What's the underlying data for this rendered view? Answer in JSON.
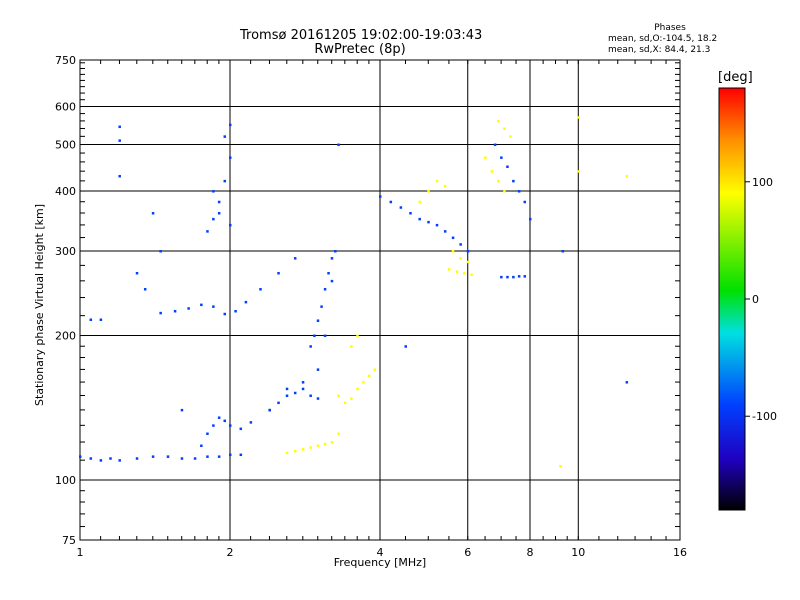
{
  "chart_data": {
    "type": "scatter",
    "title": "Tromsø 20161205 19:02:00-19:03:43",
    "subtitle": "RwPretec (8p)",
    "xlabel": "Frequency [MHz]",
    "ylabel": "Stationary phase Virtual Height [km]",
    "x_scale": "log",
    "y_scale": "log",
    "xlim": [
      1,
      16
    ],
    "ylim": [
      75,
      750
    ],
    "x_ticks": [
      1,
      2,
      4,
      6,
      8,
      10,
      16
    ],
    "y_ticks": [
      75,
      100,
      200,
      300,
      400,
      500,
      600,
      750
    ],
    "grid": true,
    "phases_box": {
      "title": "Phases",
      "line1": "mean, sd,O:-104.5, 18.2",
      "line2": "mean, sd,X:  84.4, 21.3"
    },
    "colorbar": {
      "label": "[deg]",
      "range": [
        -180,
        180
      ],
      "ticks": [
        100,
        0,
        -100
      ],
      "colors": [
        "#ff0000",
        "#ff8c00",
        "#ffff00",
        "#00e000",
        "#00e0e0",
        "#0040ff",
        "#2000c0",
        "#000000"
      ]
    },
    "series": [
      {
        "phase": -110,
        "x": [
          1.0,
          1.05,
          1.1,
          1.15,
          1.2,
          1.3,
          1.4,
          1.5,
          1.6,
          1.7,
          1.8,
          1.9,
          2.0,
          2.1
        ],
        "y": [
          112,
          111,
          110,
          111,
          110,
          111,
          112,
          112,
          111,
          111,
          112,
          112,
          113,
          113
        ]
      },
      {
        "phase": -110,
        "x": [
          1.45,
          1.55,
          1.65,
          1.75,
          1.85,
          1.95,
          2.05,
          2.15,
          2.3,
          2.5,
          2.7
        ],
        "y": [
          223,
          225,
          228,
          232,
          230,
          222,
          225,
          235,
          250,
          270,
          290
        ]
      },
      {
        "phase": -100,
        "x": [
          1.05,
          1.1
        ],
        "y": [
          216,
          216
        ]
      },
      {
        "phase": -105,
        "x": [
          1.8,
          1.85,
          1.9,
          1.95,
          2.0,
          2.0,
          1.95,
          1.9,
          2.0,
          1.85
        ],
        "y": [
          330,
          350,
          380,
          420,
          470,
          550,
          520,
          360,
          340,
          400
        ]
      },
      {
        "phase": -100,
        "x": [
          1.75,
          1.8,
          1.85,
          1.9,
          1.95,
          2.0,
          2.1,
          2.2,
          2.4,
          2.6,
          2.8,
          3.0,
          3.1,
          3.2
        ],
        "y": [
          118,
          125,
          130,
          135,
          133,
          130,
          128,
          132,
          140,
          155,
          160,
          170,
          200,
          260
        ]
      },
      {
        "phase": -90,
        "x": [
          2.4,
          2.5,
          2.6,
          2.7,
          2.8,
          2.9,
          3.0
        ],
        "y": [
          140,
          145,
          150,
          152,
          155,
          150,
          148
        ]
      },
      {
        "phase": -95,
        "x": [
          2.9,
          2.95,
          3.0,
          3.05,
          3.1,
          3.15,
          3.2,
          3.25
        ],
        "y": [
          190,
          200,
          215,
          230,
          250,
          270,
          290,
          300
        ]
      },
      {
        "phase": 100,
        "x": [
          3.3,
          3.4,
          3.5,
          3.6,
          3.7,
          3.8,
          3.9,
          3.6,
          3.5
        ],
        "y": [
          150,
          145,
          148,
          155,
          160,
          165,
          170,
          200,
          190
        ]
      },
      {
        "phase": 60,
        "x": [
          2.6,
          2.7,
          2.8,
          2.9,
          3.0,
          3.1,
          3.2,
          3.3
        ],
        "y": [
          114,
          115,
          116,
          117,
          118,
          119,
          120,
          125
        ]
      },
      {
        "phase": -100,
        "x": [
          4.0,
          4.2,
          4.4,
          4.6,
          4.8,
          5.0,
          5.2,
          5.4,
          5.6,
          5.8,
          6.0
        ],
        "y": [
          390,
          380,
          370,
          360,
          350,
          345,
          340,
          330,
          320,
          310,
          300
        ]
      },
      {
        "phase": 110,
        "x": [
          4.8,
          5.0,
          5.2,
          5.4,
          5.6,
          5.8,
          6.0
        ],
        "y": [
          380,
          400,
          420,
          410,
          300,
          290,
          285
        ]
      },
      {
        "phase": 80,
        "x": [
          5.5,
          5.7,
          5.9,
          6.1
        ],
        "y": [
          275,
          272,
          270,
          268
        ]
      },
      {
        "phase": 75,
        "x": [
          6.5,
          6.7,
          6.9,
          7.1
        ],
        "y": [
          470,
          440,
          420,
          400
        ]
      },
      {
        "phase": -105,
        "x": [
          6.8,
          7.0,
          7.2,
          7.4,
          7.6,
          7.8,
          8.0
        ],
        "y": [
          500,
          470,
          450,
          420,
          400,
          380,
          350
        ]
      },
      {
        "phase": 110,
        "x": [
          6.9,
          7.1,
          7.3
        ],
        "y": [
          560,
          540,
          520
        ]
      },
      {
        "phase": -100,
        "x": [
          7.0,
          7.2,
          7.4,
          7.6,
          7.8
        ],
        "y": [
          265,
          265,
          265,
          266,
          266
        ]
      },
      {
        "phase": -100,
        "x": [
          1.2,
          1.2,
          1.2,
          1.3,
          1.35,
          1.4,
          3.3,
          4.5,
          9.3
        ],
        "y": [
          545,
          510,
          430,
          270,
          250,
          360,
          500,
          190,
          300
        ]
      },
      {
        "phase": 100,
        "x": [
          10.0,
          10.0,
          12.5,
          9.2
        ],
        "y": [
          570,
          440,
          430,
          107
        ]
      },
      {
        "phase": -80,
        "x": [
          12.5,
          1.6,
          1.45
        ],
        "y": [
          160,
          140,
          300
        ]
      }
    ]
  }
}
